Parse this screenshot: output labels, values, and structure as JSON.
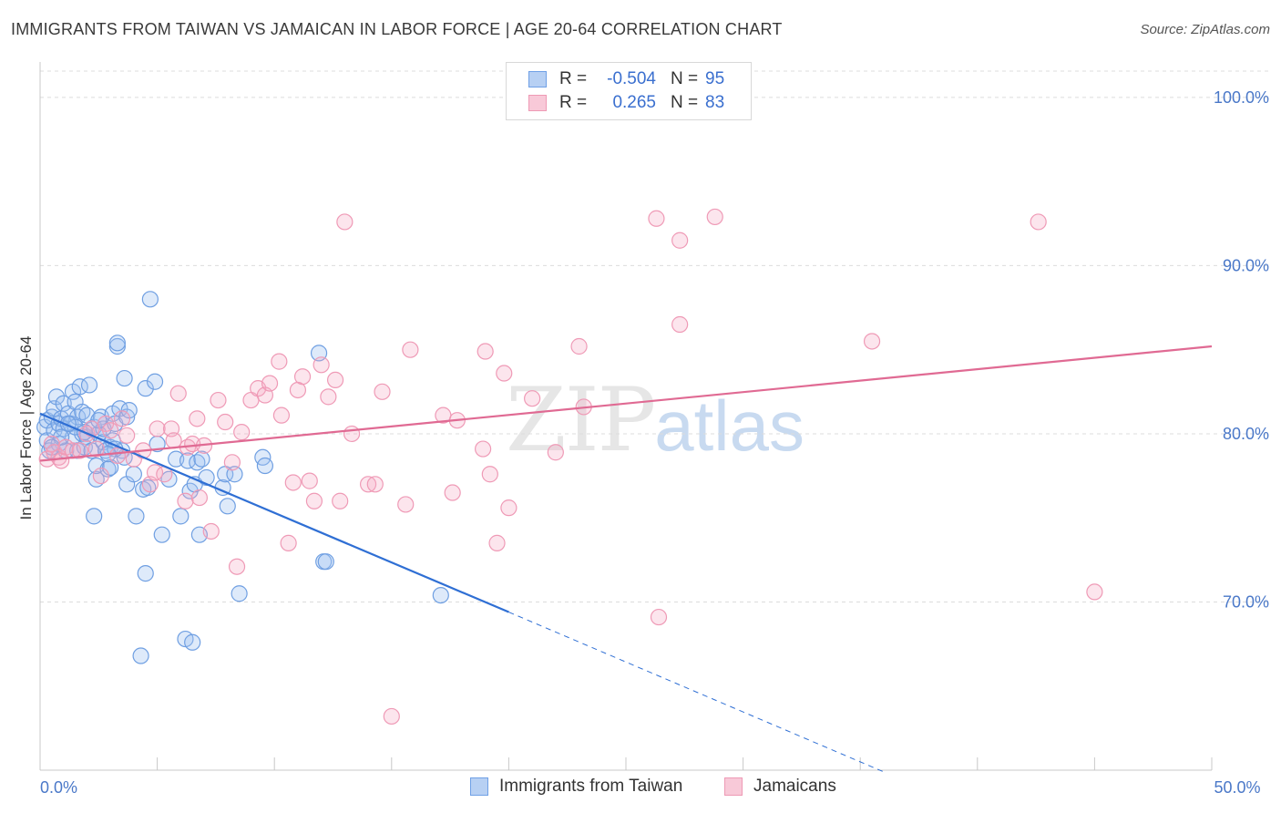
{
  "title": "IMMIGRANTS FROM TAIWAN VS JAMAICAN IN LABOR FORCE | AGE 20-64 CORRELATION CHART",
  "source": "Source: ZipAtlas.com",
  "watermark": {
    "zip": "ZIP",
    "atlas": "atlas"
  },
  "legend": {
    "rows": [
      {
        "r_label": "R =",
        "r_value": "-0.504",
        "n_label": "N =",
        "n_value": "95",
        "color": "#6fa0e6",
        "fill": "#b7d0f3"
      },
      {
        "r_label": "R =",
        "r_value": "0.265",
        "n_label": "N =",
        "n_value": "83",
        "color": "#ee9ab5",
        "fill": "#f8c9d8"
      }
    ]
  },
  "bottom_legend": [
    {
      "label": "Immigrants from Taiwan",
      "color": "#6fa0e6",
      "fill": "#b7d0f3"
    },
    {
      "label": "Jamaicans",
      "color": "#ee9ab5",
      "fill": "#f8c9d8"
    }
  ],
  "chart_data": {
    "type": "scatter",
    "title": "IMMIGRANTS FROM TAIWAN VS JAMAICAN IN LABOR FORCE | AGE 20-64 CORRELATION CHART",
    "xlabel": "",
    "ylabel": "In Labor Force | Age 20-64",
    "xlim": [
      0,
      50
    ],
    "ylim": [
      60,
      102
    ],
    "x_tick_labels": [
      {
        "value": 0,
        "label": "0.0%"
      },
      {
        "value": 50,
        "label": "50.0%"
      }
    ],
    "y_tick_labels": [
      {
        "value": 70,
        "label": "70.0%"
      },
      {
        "value": 80,
        "label": "80.0%"
      },
      {
        "value": 90,
        "label": "90.0%"
      },
      {
        "value": 100,
        "label": "100.0%"
      }
    ],
    "grid": true,
    "series": [
      {
        "name": "Immigrants from Taiwan",
        "color": "#4a86e0",
        "trend": {
          "x0": 0,
          "y0": 81.2,
          "x1": 20,
          "y1": 69.4,
          "dash_to_x": 36,
          "dash_to_y": 59.9,
          "color": "#2f6fd4"
        },
        "points": [
          [
            0.2,
            80.4
          ],
          [
            0.3,
            79.6
          ],
          [
            0.3,
            80.8
          ],
          [
            0.4,
            79.0
          ],
          [
            0.5,
            81.0
          ],
          [
            0.6,
            80.2
          ],
          [
            0.6,
            81.5
          ],
          [
            0.7,
            82.2
          ],
          [
            0.8,
            80.6
          ],
          [
            0.8,
            79.4
          ],
          [
            0.9,
            80.9
          ],
          [
            1.0,
            81.8
          ],
          [
            1.0,
            80.3
          ],
          [
            1.1,
            79.0
          ],
          [
            1.2,
            81.2
          ],
          [
            1.3,
            80.6
          ],
          [
            1.4,
            82.5
          ],
          [
            1.4,
            79.8
          ],
          [
            1.5,
            81.9
          ],
          [
            1.6,
            79.0
          ],
          [
            1.6,
            81.0
          ],
          [
            1.7,
            82.8
          ],
          [
            1.8,
            80.0
          ],
          [
            1.8,
            81.3
          ],
          [
            1.9,
            79.2
          ],
          [
            2.0,
            81.1
          ],
          [
            2.0,
            79.8
          ],
          [
            2.1,
            82.9
          ],
          [
            2.2,
            79.0
          ],
          [
            2.3,
            80.4
          ],
          [
            2.3,
            75.1
          ],
          [
            2.4,
            77.3
          ],
          [
            2.4,
            78.1
          ],
          [
            2.5,
            80.0
          ],
          [
            2.6,
            81.0
          ],
          [
            2.7,
            79.5
          ],
          [
            2.7,
            80.3
          ],
          [
            2.8,
            79.0
          ],
          [
            2.9,
            77.9
          ],
          [
            3.0,
            79.2
          ],
          [
            3.0,
            78.0
          ],
          [
            3.1,
            79.6
          ],
          [
            3.1,
            81.2
          ],
          [
            3.2,
            80.6
          ],
          [
            3.3,
            85.2
          ],
          [
            3.3,
            85.4
          ],
          [
            3.4,
            81.5
          ],
          [
            3.5,
            79.0
          ],
          [
            3.6,
            83.3
          ],
          [
            3.6,
            78.6
          ],
          [
            3.7,
            81.0
          ],
          [
            3.8,
            81.4
          ],
          [
            3.7,
            77.0
          ],
          [
            4.0,
            77.6
          ],
          [
            4.1,
            75.1
          ],
          [
            4.3,
            66.8
          ],
          [
            4.4,
            76.7
          ],
          [
            4.5,
            71.7
          ],
          [
            4.5,
            82.7
          ],
          [
            4.6,
            76.8
          ],
          [
            4.7,
            88.0
          ],
          [
            4.9,
            83.1
          ],
          [
            5.0,
            79.4
          ],
          [
            5.2,
            74.0
          ],
          [
            5.5,
            77.3
          ],
          [
            5.8,
            78.5
          ],
          [
            6.0,
            75.1
          ],
          [
            6.2,
            67.8
          ],
          [
            6.3,
            78.4
          ],
          [
            6.5,
            67.6
          ],
          [
            6.4,
            76.6
          ],
          [
            6.6,
            77.0
          ],
          [
            6.7,
            78.3
          ],
          [
            6.8,
            74.0
          ],
          [
            6.9,
            78.5
          ],
          [
            7.1,
            77.4
          ],
          [
            7.8,
            76.8
          ],
          [
            7.9,
            77.6
          ],
          [
            8.0,
            75.7
          ],
          [
            8.3,
            77.6
          ],
          [
            8.5,
            70.5
          ],
          [
            9.5,
            78.6
          ],
          [
            9.6,
            78.1
          ],
          [
            11.9,
            84.8
          ],
          [
            12.1,
            72.4
          ],
          [
            12.2,
            72.4
          ],
          [
            17.1,
            70.4
          ],
          [
            1.5,
            80.4
          ],
          [
            2.5,
            80.8
          ],
          [
            1.2,
            80.6
          ],
          [
            0.9,
            79.8
          ],
          [
            3.2,
            79.1
          ],
          [
            2.9,
            78.8
          ],
          [
            0.5,
            79.2
          ],
          [
            1.9,
            80.1
          ]
        ]
      },
      {
        "name": "Jamaicans",
        "color": "#ee8fb0",
        "trend": {
          "x0": 0,
          "y0": 78.4,
          "x1": 50,
          "y1": 85.2,
          "color": "#e06a93"
        },
        "points": [
          [
            0.3,
            78.5
          ],
          [
            0.5,
            79.4
          ],
          [
            0.6,
            78.9
          ],
          [
            0.8,
            78.6
          ],
          [
            0.9,
            78.4
          ],
          [
            1.1,
            79.2
          ],
          [
            1.4,
            79.0
          ],
          [
            1.7,
            79.0
          ],
          [
            2.0,
            80.0
          ],
          [
            2.2,
            80.3
          ],
          [
            2.4,
            79.1
          ],
          [
            2.6,
            77.5
          ],
          [
            2.8,
            80.6
          ],
          [
            3.0,
            80.2
          ],
          [
            3.3,
            78.7
          ],
          [
            3.5,
            80.9
          ],
          [
            3.7,
            79.9
          ],
          [
            4.0,
            78.5
          ],
          [
            4.4,
            79.0
          ],
          [
            4.7,
            77.0
          ],
          [
            4.9,
            77.7
          ],
          [
            5.0,
            80.3
          ],
          [
            5.3,
            77.6
          ],
          [
            5.6,
            80.3
          ],
          [
            5.7,
            79.6
          ],
          [
            5.9,
            82.4
          ],
          [
            6.2,
            76.0
          ],
          [
            6.3,
            79.2
          ],
          [
            6.5,
            79.4
          ],
          [
            6.7,
            80.9
          ],
          [
            6.8,
            76.2
          ],
          [
            7.0,
            79.3
          ],
          [
            7.3,
            74.2
          ],
          [
            7.6,
            82.0
          ],
          [
            7.9,
            80.7
          ],
          [
            8.2,
            78.3
          ],
          [
            8.4,
            72.1
          ],
          [
            8.6,
            80.1
          ],
          [
            9.0,
            82.0
          ],
          [
            9.3,
            82.7
          ],
          [
            9.6,
            82.3
          ],
          [
            9.8,
            83.0
          ],
          [
            10.2,
            84.3
          ],
          [
            10.3,
            81.1
          ],
          [
            10.6,
            73.5
          ],
          [
            10.8,
            77.1
          ],
          [
            11.0,
            82.6
          ],
          [
            11.2,
            83.4
          ],
          [
            11.5,
            77.2
          ],
          [
            11.7,
            76.0
          ],
          [
            12.0,
            84.1
          ],
          [
            12.3,
            82.2
          ],
          [
            12.6,
            83.2
          ],
          [
            12.8,
            76.0
          ],
          [
            13.0,
            92.6
          ],
          [
            13.3,
            80.0
          ],
          [
            14.0,
            77.0
          ],
          [
            14.3,
            77.0
          ],
          [
            14.6,
            82.5
          ],
          [
            15.0,
            63.2
          ],
          [
            15.6,
            75.8
          ],
          [
            15.8,
            85.0
          ],
          [
            17.2,
            81.1
          ],
          [
            17.6,
            76.5
          ],
          [
            17.8,
            80.8
          ],
          [
            18.9,
            79.1
          ],
          [
            19.0,
            84.9
          ],
          [
            19.2,
            77.6
          ],
          [
            19.5,
            73.5
          ],
          [
            19.8,
            83.6
          ],
          [
            20.0,
            75.6
          ],
          [
            21.0,
            82.1
          ],
          [
            22.0,
            78.9
          ],
          [
            23.0,
            85.2
          ],
          [
            23.2,
            81.6
          ],
          [
            26.3,
            92.8
          ],
          [
            26.4,
            69.1
          ],
          [
            27.3,
            86.5
          ],
          [
            27.3,
            91.5
          ],
          [
            28.8,
            92.9
          ],
          [
            35.5,
            85.5
          ],
          [
            42.6,
            92.6
          ],
          [
            45.0,
            70.6
          ]
        ]
      }
    ]
  }
}
